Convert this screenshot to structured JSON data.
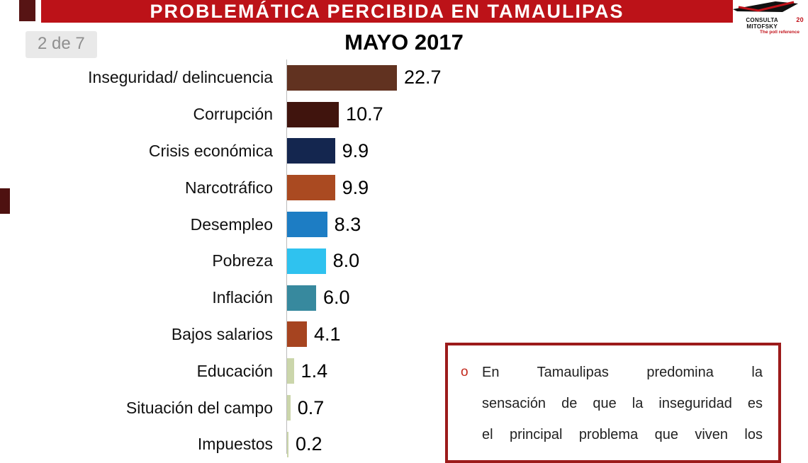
{
  "header": {
    "title": "PROBLEMÁTICA PERCIBIDA EN TAMAULIPAS",
    "page_indicator": "2 de 7"
  },
  "logo": {
    "brand": "CONSULTA MITOFSKY",
    "badge": "20",
    "tagline": "The poll reference"
  },
  "chart_data": {
    "type": "bar",
    "orientation": "horizontal",
    "title": "MAYO 2017",
    "categories": [
      "Inseguridad/ delincuencia",
      "Corrupción",
      "Crisis económica",
      "Narcotráfico",
      "Desempleo",
      "Pobreza",
      "Inflación",
      "Bajos salarios",
      "Educación",
      "Situación del campo",
      "Impuestos"
    ],
    "values": [
      22.7,
      10.7,
      9.9,
      9.9,
      8.3,
      8.0,
      6.0,
      4.1,
      1.4,
      0.7,
      0.2
    ],
    "bar_colors": [
      "#613220",
      "#40140d",
      "#14264f",
      "#aa4a21",
      "#1d7dc4",
      "#2fc2ef",
      "#37899e",
      "#a64420",
      "#cbd6ab",
      "#cbd6ab",
      "#cbd6ab"
    ],
    "xlim": [
      0,
      25
    ],
    "value_labels": true,
    "grid": false,
    "legend": false
  },
  "note_box": {
    "bullet": "o",
    "lines": [
      "En Tamaulipas predomina la",
      "sensación de que la inseguridad es",
      "el principal problema que viven los"
    ]
  },
  "colors": {
    "banner_bg": "#bc1218",
    "banner_text": "#ffffff",
    "note_border": "#9c1b1b",
    "bullet": "#c2281c",
    "page_box_bg": "#e9e9e9",
    "page_box_text": "#8f8f8f",
    "accent_maroon": "#571414"
  }
}
